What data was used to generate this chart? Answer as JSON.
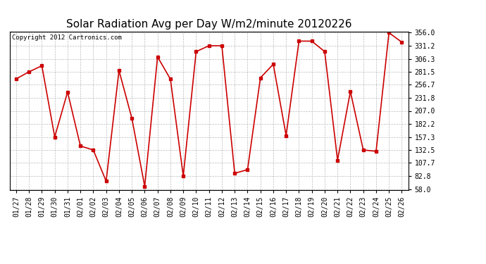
{
  "title": "Solar Radiation Avg per Day W/m2/minute 20120226",
  "copyright": "Copyright 2012 Cartronics.com",
  "dates": [
    "01/27",
    "01/28",
    "01/29",
    "01/30",
    "01/31",
    "02/01",
    "02/02",
    "02/03",
    "02/04",
    "02/05",
    "02/06",
    "02/07",
    "02/08",
    "02/09",
    "02/10",
    "02/11",
    "02/12",
    "02/13",
    "02/14",
    "02/15",
    "02/16",
    "02/17",
    "02/18",
    "02/19",
    "02/20",
    "02/21",
    "02/22",
    "02/23",
    "02/24",
    "02/25",
    "02/26"
  ],
  "values": [
    268.0,
    281.5,
    293.0,
    157.3,
    243.0,
    140.0,
    132.5,
    73.0,
    284.0,
    193.0,
    63.0,
    310.0,
    267.5,
    82.8,
    320.0,
    331.2,
    331.2,
    88.0,
    95.0,
    270.0,
    296.0,
    160.0,
    340.0,
    340.0,
    320.0,
    113.0,
    244.0,
    132.5,
    130.0,
    356.0,
    338.0
  ],
  "line_color": "#cc0000",
  "marker": "s",
  "marker_size": 2.5,
  "background_color": "#ffffff",
  "plot_bg_color": "#ffffff",
  "grid_color": "#bbbbbb",
  "ymin": 58.0,
  "ymax": 356.0,
  "yticks": [
    58.0,
    82.8,
    107.7,
    132.5,
    157.3,
    182.2,
    207.0,
    231.8,
    256.7,
    281.5,
    306.3,
    331.2,
    356.0
  ],
  "title_fontsize": 11,
  "copyright_fontsize": 6.5,
  "tick_fontsize": 7
}
